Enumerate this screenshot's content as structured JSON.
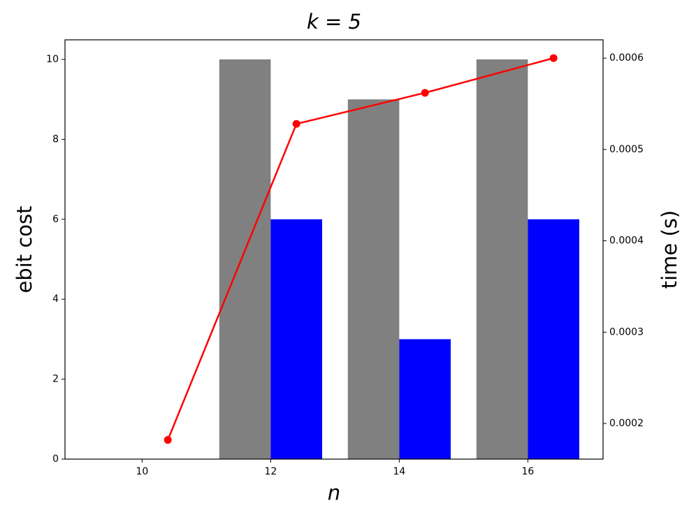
{
  "chart_data": {
    "type": "bar",
    "title": "k = 5",
    "x_label": "n",
    "y_label": "ebit cost",
    "y2_label": "time (s)",
    "x": [
      10,
      12,
      14,
      16
    ],
    "series": [
      {
        "color": "#808080",
        "values": [
          0,
          10,
          9,
          10
        ]
      },
      {
        "color": "#0000ff",
        "values": [
          0,
          6,
          3,
          6
        ]
      },
      {
        "type": "line",
        "axis": "y2",
        "color": "#ff0000",
        "x": [
          10.4,
          12.4,
          14.4,
          16.4
        ],
        "values": [
          0.000182,
          0.000528,
          0.000562,
          0.0006
        ]
      }
    ],
    "xlim": [
      8.8,
      17.17
    ],
    "xticks": [
      10,
      12,
      14,
      16
    ],
    "ylim": [
      0,
      10.49
    ],
    "yticks": [
      0,
      2,
      4,
      6,
      8,
      10
    ],
    "y2lim": [
      0.000161,
      0.00062
    ],
    "y2ticks": [
      0.0002,
      0.0003,
      0.0004,
      0.0005,
      0.0006
    ],
    "grid": false
  }
}
